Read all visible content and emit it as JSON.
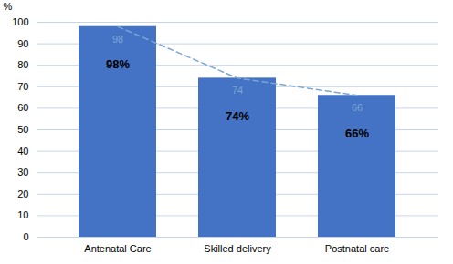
{
  "chart_data": {
    "type": "bar",
    "ylabel": "%",
    "categories": [
      "Antenatal Care",
      "Skilled delivery",
      "Postnatal care"
    ],
    "series": [
      {
        "type": "bar",
        "color": "#4472C4",
        "values": [
          98,
          74,
          66
        ],
        "value_labels": [
          "98%",
          "74%",
          "66%"
        ]
      },
      {
        "type": "line",
        "color": "#7AA7D4",
        "line_style": "dashed",
        "values": [
          98,
          74,
          66
        ],
        "data_labels": true
      }
    ],
    "ylim": [
      0,
      100
    ],
    "yticks": [
      0,
      10,
      20,
      30,
      40,
      50,
      60,
      70,
      80,
      90,
      100
    ],
    "grid": true
  }
}
